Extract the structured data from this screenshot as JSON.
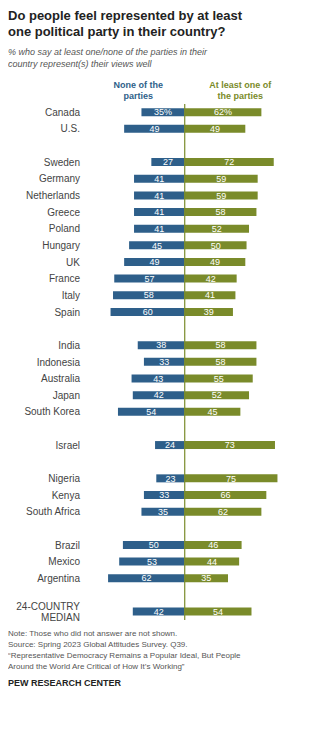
{
  "chart_data": {
    "type": "bar",
    "orientation": "horizontal",
    "title": "Do people feel represented by at least\none political party in their country?",
    "subtitle": "% who say at least one/none of the parties in their\ncountry represent(s) their views well",
    "categories": [
      "Canada",
      "U.S.",
      null,
      "Sweden",
      "Germany",
      "Netherlands",
      "Greece",
      "Poland",
      "Hungary",
      "UK",
      "France",
      "Italy",
      "Spain",
      null,
      "India",
      "Indonesia",
      "Australia",
      "Japan",
      "South Korea",
      null,
      "Israel",
      null,
      "Nigeria",
      "Kenya",
      "South Africa",
      null,
      "Brazil",
      "Mexico",
      "Argentina",
      null,
      "24-COUNTRY\nMEDIAN"
    ],
    "series": [
      {
        "name": "None of the\nparties",
        "color": "#2E5F8A",
        "values": [
          35,
          49,
          null,
          27,
          41,
          41,
          41,
          41,
          45,
          49,
          57,
          58,
          60,
          null,
          38,
          33,
          43,
          42,
          54,
          null,
          24,
          null,
          23,
          33,
          35,
          null,
          50,
          53,
          62,
          null,
          42
        ],
        "value_labels": [
          "35%",
          "49",
          null,
          "27",
          "41",
          "41",
          "41",
          "41",
          "45",
          "49",
          "57",
          "58",
          "60",
          null,
          "38",
          "33",
          "43",
          "42",
          "54",
          null,
          "24",
          null,
          "23",
          "33",
          "35",
          null,
          "50",
          "53",
          "62",
          null,
          "42"
        ]
      },
      {
        "name": "At least one of\nthe parties",
        "color": "#7A8B2A",
        "values": [
          62,
          49,
          null,
          72,
          59,
          59,
          58,
          52,
          50,
          49,
          42,
          41,
          39,
          null,
          58,
          58,
          55,
          52,
          45,
          null,
          73,
          null,
          75,
          66,
          62,
          null,
          46,
          44,
          35,
          null,
          54
        ],
        "value_labels": [
          "62%",
          "49",
          null,
          "72",
          "59",
          "59",
          "58",
          "52",
          "50",
          "49",
          "42",
          "41",
          "39",
          null,
          "58",
          "58",
          "55",
          "52",
          "45",
          null,
          "73",
          null,
          "75",
          "66",
          "62",
          null,
          "46",
          "44",
          "35",
          null,
          "54"
        ]
      }
    ],
    "xlim": [
      -75,
      90
    ],
    "grid": false,
    "legend": "top",
    "data_labels": true,
    "tick_labels": "y",
    "annotations": [
      "Note: Those who did not answer are not shown.",
      "Source: Spring 2023 Global Attitudes Survey. Q39.",
      "“Representative Democracy Remains a Popular Ideal, But People",
      "Around the World Are Critical of How It’s Working”"
    ],
    "source": "PEW RESEARCH CENTER"
  }
}
